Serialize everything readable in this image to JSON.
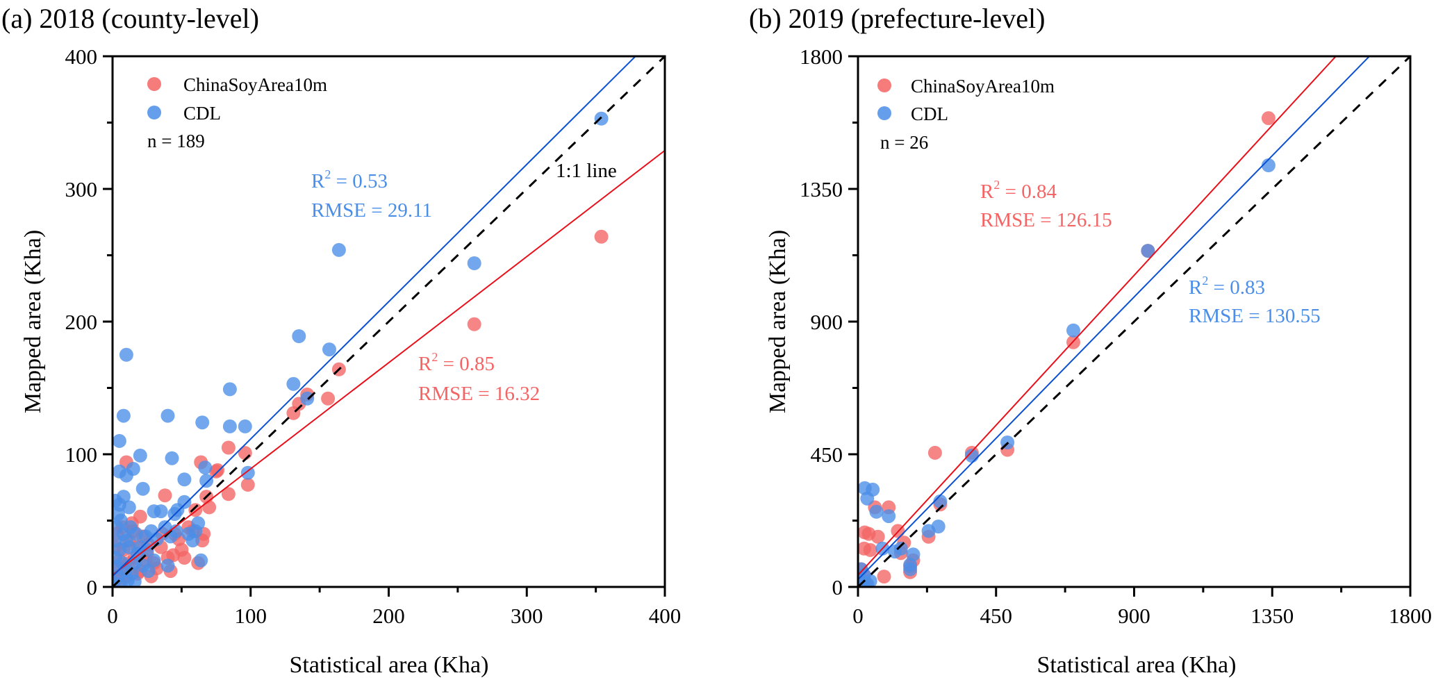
{
  "chart_data": [
    {
      "id": "a",
      "type": "scatter",
      "title": "(a) 2018 (county-level)",
      "xlabel": "Statistical area (Kha)",
      "ylabel": "Mapped area (Kha)",
      "xlim": [
        0,
        400
      ],
      "ylim": [
        0,
        400
      ],
      "xticks": [
        0,
        100,
        200,
        300,
        400
      ],
      "yticks": [
        0,
        100,
        200,
        300,
        400
      ],
      "minor_step": 50,
      "legend": {
        "position": "top-left",
        "n_label": "n = 189"
      },
      "one_to_one_label": "1:1 line",
      "series": [
        {
          "name": "ChinaSoyArea10m",
          "color": "#f46464",
          "line_color": "#e8101a",
          "fit": {
            "slope": 0.8,
            "intercept": 9
          },
          "stats": {
            "r2_prefix": "R",
            "r2_sup": "2",
            "r2_value": " = 0.85",
            "rmse": "RMSE = 16.32"
          },
          "points": [
            [
              354,
              264
            ],
            [
              262,
              198
            ],
            [
              164,
              164
            ],
            [
              156,
              142
            ],
            [
              131,
              131
            ],
            [
              135,
              138
            ],
            [
              141,
              145
            ],
            [
              84,
              105
            ],
            [
              96,
              101
            ],
            [
              98,
              77
            ],
            [
              64,
              94
            ],
            [
              84,
              70
            ],
            [
              75,
              87
            ],
            [
              10,
              94
            ],
            [
              38,
              69
            ],
            [
              68,
              68
            ],
            [
              20,
              53
            ],
            [
              60,
              58
            ],
            [
              55,
              45
            ],
            [
              45,
              40
            ],
            [
              65,
              35
            ],
            [
              50,
              28
            ],
            [
              40,
              22
            ],
            [
              42,
              12
            ],
            [
              62,
              18
            ],
            [
              30,
              18
            ],
            [
              25,
              25
            ],
            [
              15,
              42
            ],
            [
              12,
              35
            ],
            [
              18,
              30
            ],
            [
              8,
              28
            ],
            [
              5,
              20
            ],
            [
              3,
              12
            ],
            [
              10,
              8
            ],
            [
              20,
              12
            ],
            [
              28,
              8
            ],
            [
              35,
              30
            ],
            [
              48,
              36
            ],
            [
              58,
              42
            ],
            [
              66,
              40
            ],
            [
              22,
              38
            ],
            [
              14,
              48
            ],
            [
              7,
              45
            ],
            [
              3,
              40
            ],
            [
              2,
              30
            ],
            [
              9,
              15
            ],
            [
              16,
              22
            ],
            [
              24,
              20
            ],
            [
              32,
              14
            ],
            [
              6,
              5
            ],
            [
              1,
              4
            ],
            [
              4,
              8
            ],
            [
              12,
              18
            ],
            [
              18,
              10
            ],
            [
              26,
              32
            ],
            [
              36,
              40
            ],
            [
              44,
              24
            ],
            [
              52,
              22
            ],
            [
              70,
              60
            ],
            [
              76,
              88
            ]
          ]
        },
        {
          "name": "CDL",
          "color": "#4a8ee8",
          "line_color": "#0a50d0",
          "fit": {
            "slope": 1.035,
            "intercept": 8
          },
          "stats": {
            "r2_prefix": "R",
            "r2_sup": "2",
            "r2_value": " = 0.53",
            "rmse": "RMSE = 29.11"
          },
          "points": [
            [
              354,
              353
            ],
            [
              164,
              254
            ],
            [
              262,
              244
            ],
            [
              135,
              189
            ],
            [
              157,
              179
            ],
            [
              10,
              175
            ],
            [
              85,
              149
            ],
            [
              131,
              153
            ],
            [
              141,
              142
            ],
            [
              40,
              129
            ],
            [
              8,
              129
            ],
            [
              65,
              124
            ],
            [
              85,
              121
            ],
            [
              96,
              121
            ],
            [
              5,
              110
            ],
            [
              43,
              97
            ],
            [
              20,
              99
            ],
            [
              98,
              86
            ],
            [
              10,
              84
            ],
            [
              5,
              87
            ],
            [
              67,
              90
            ],
            [
              52,
              81
            ],
            [
              8,
              68
            ],
            [
              68,
              80
            ],
            [
              15,
              89
            ],
            [
              22,
              74
            ],
            [
              12,
              60
            ],
            [
              35,
              57
            ],
            [
              52,
              64
            ],
            [
              47,
              58
            ],
            [
              30,
              57
            ],
            [
              2,
              65
            ],
            [
              4,
              55
            ],
            [
              6,
              50
            ],
            [
              3,
              45
            ],
            [
              8,
              40
            ],
            [
              10,
              35
            ],
            [
              12,
              30
            ],
            [
              5,
              28
            ],
            [
              2,
              22
            ],
            [
              7,
              18
            ],
            [
              9,
              12
            ],
            [
              4,
              8
            ],
            [
              1,
              3
            ],
            [
              11,
              5
            ],
            [
              14,
              10
            ],
            [
              16,
              18
            ],
            [
              18,
              25
            ],
            [
              20,
              30
            ],
            [
              24,
              38
            ],
            [
              28,
              42
            ],
            [
              32,
              36
            ],
            [
              38,
              45
            ],
            [
              42,
              38
            ],
            [
              46,
              42
            ],
            [
              55,
              40
            ],
            [
              58,
              35
            ],
            [
              62,
              48
            ],
            [
              64,
              20
            ],
            [
              40,
              16
            ],
            [
              30,
              20
            ],
            [
              22,
              16
            ],
            [
              26,
              12
            ],
            [
              16,
              4
            ],
            [
              6,
              2
            ],
            [
              3,
              15
            ],
            [
              2,
              35
            ],
            [
              5,
              62
            ],
            [
              13,
              45
            ],
            [
              17,
              40
            ],
            [
              25,
              28
            ],
            [
              45,
              55
            ],
            [
              60,
              42
            ]
          ]
        }
      ]
    },
    {
      "id": "b",
      "type": "scatter",
      "title": "(b) 2019 (prefecture-level)",
      "xlabel": "Statistical area (Kha)",
      "ylabel": "Mapped area (Kha)",
      "xlim": [
        0,
        1800
      ],
      "ylim": [
        0,
        1800
      ],
      "xticks": [
        0,
        450,
        900,
        1350,
        1800
      ],
      "yticks": [
        0,
        450,
        900,
        1350,
        1800
      ],
      "minor_step": 225,
      "legend": {
        "position": "top-left",
        "n_label": "n = 26"
      },
      "series": [
        {
          "name": "ChinaSoyArea10m",
          "color": "#f46464",
          "line_color": "#e8101a",
          "fit": {
            "slope": 1.13,
            "intercept": 40
          },
          "stats": {
            "r2_prefix": "R",
            "r2_sup": "2",
            "r2_value": " = 0.84",
            "rmse": "RMSE = 126.15"
          },
          "points": [
            [
              1338,
              1590
            ],
            [
              945,
              1140
            ],
            [
              702,
              830
            ],
            [
              487,
              465
            ],
            [
              371,
              455
            ],
            [
              268,
              280
            ],
            [
              251,
              455
            ],
            [
              230,
              170
            ],
            [
              180,
              90
            ],
            [
              170,
              50
            ],
            [
              22,
              185
            ],
            [
              35,
              180
            ],
            [
              40,
              125
            ],
            [
              20,
              130
            ],
            [
              55,
              270
            ],
            [
              100,
              270
            ],
            [
              65,
              170
            ],
            [
              130,
              190
            ],
            [
              150,
              150
            ],
            [
              85,
              35
            ],
            [
              10,
              60
            ],
            [
              5,
              20
            ],
            [
              25,
              10
            ],
            [
              20,
              40
            ],
            [
              170,
              70
            ],
            [
              140,
              115
            ]
          ]
        },
        {
          "name": "CDL",
          "color": "#4a8ee8",
          "line_color": "#0a50d0",
          "fit": {
            "slope": 1.065,
            "intercept": 25
          },
          "stats": {
            "r2_prefix": "R",
            "r2_sup": "2",
            "r2_value": " = 0.83",
            "rmse": "RMSE = 130.55"
          },
          "points": [
            [
              1338,
              1430
            ],
            [
              945,
              1140
            ],
            [
              702,
              870
            ],
            [
              487,
              490
            ],
            [
              371,
              445
            ],
            [
              268,
              290
            ],
            [
              262,
              205
            ],
            [
              230,
              190
            ],
            [
              180,
              110
            ],
            [
              170,
              75
            ],
            [
              22,
              335
            ],
            [
              48,
              330
            ],
            [
              30,
              300
            ],
            [
              60,
              255
            ],
            [
              100,
              240
            ],
            [
              140,
              130
            ],
            [
              120,
              120
            ],
            [
              80,
              130
            ],
            [
              10,
              60
            ],
            [
              5,
              30
            ],
            [
              15,
              15
            ],
            [
              30,
              10
            ],
            [
              40,
              20
            ],
            [
              20,
              40
            ],
            [
              8,
              8
            ],
            [
              170,
              60
            ]
          ]
        }
      ]
    }
  ]
}
